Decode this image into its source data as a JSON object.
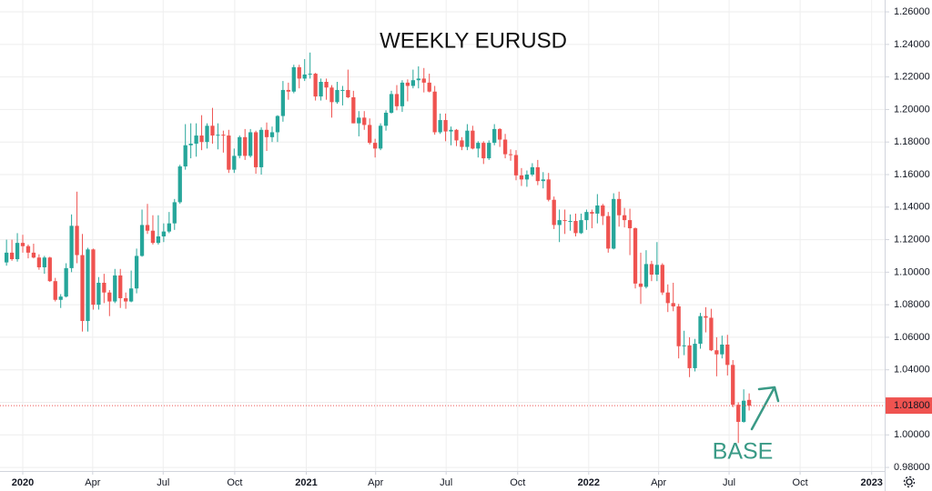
{
  "chart_data": {
    "type": "candlestick",
    "title": "WEEKLY EURUSD",
    "annotation": "BASE",
    "up_color": "#26a69a",
    "down_color": "#ef5350",
    "grid": true,
    "xlim": [
      -4.2,
      159
    ],
    "ylim": [
      0.9778,
      1.2673
    ],
    "xticks": [
      {
        "value": 0,
        "label": "2020"
      },
      {
        "value": 12.9,
        "label": "Apr"
      },
      {
        "value": 25.9,
        "label": "Jul"
      },
      {
        "value": 39.1,
        "label": "Oct"
      },
      {
        "value": 52.3,
        "label": "2021"
      },
      {
        "value": 65.1,
        "label": "Apr"
      },
      {
        "value": 78.1,
        "label": "Jul"
      },
      {
        "value": 91.3,
        "label": "Oct"
      },
      {
        "value": 104.4,
        "label": "2022"
      },
      {
        "value": 117.3,
        "label": "Apr"
      },
      {
        "value": 130.3,
        "label": "Jul"
      },
      {
        "value": 143.4,
        "label": "Oct"
      },
      {
        "value": 156.6,
        "label": "2023"
      }
    ],
    "yticks": [
      {
        "value": 0.98,
        "label": "0.98000"
      },
      {
        "value": 1.0,
        "label": "1.00000"
      },
      {
        "value": 1.02,
        "label": "1.02000"
      },
      {
        "value": 1.04,
        "label": "1.04000"
      },
      {
        "value": 1.06,
        "label": "1.06000"
      },
      {
        "value": 1.08,
        "label": "1.08000"
      },
      {
        "value": 1.1,
        "label": "1.10000"
      },
      {
        "value": 1.12,
        "label": "1.12000"
      },
      {
        "value": 1.14,
        "label": "1.14000"
      },
      {
        "value": 1.16,
        "label": "1.16000"
      },
      {
        "value": 1.18,
        "label": "1.18000"
      },
      {
        "value": 1.2,
        "label": "1.20000"
      },
      {
        "value": 1.22,
        "label": "1.22000"
      },
      {
        "value": 1.24,
        "label": "1.24000"
      },
      {
        "value": 1.26,
        "label": "1.26000"
      }
    ],
    "last_price": {
      "value": 1.018,
      "label": "1.01800"
    },
    "x": [
      -3,
      -2,
      -1,
      0,
      1,
      2,
      3,
      4,
      5,
      6,
      7,
      8,
      9,
      10,
      11,
      12,
      13,
      14,
      15,
      16,
      17,
      18,
      19,
      20,
      21,
      22,
      23,
      24,
      25,
      26,
      27,
      28,
      29,
      30,
      31,
      32,
      33,
      34,
      35,
      36,
      37,
      38,
      39,
      40,
      41,
      42,
      43,
      44,
      45,
      46,
      47,
      48,
      49,
      50,
      51,
      52,
      53,
      54,
      55,
      56,
      57,
      58,
      59,
      60,
      61,
      62,
      63,
      64,
      65,
      66,
      67,
      68,
      69,
      70,
      71,
      72,
      73,
      74,
      75,
      76,
      77,
      78,
      79,
      80,
      81,
      82,
      83,
      84,
      85,
      86,
      87,
      88,
      89,
      90,
      91,
      92,
      93,
      94,
      95,
      96,
      97,
      98,
      99,
      100,
      101,
      102,
      103,
      104,
      105,
      106,
      107,
      108,
      109,
      110,
      111,
      112,
      113,
      114,
      115,
      116,
      117,
      118,
      119,
      120,
      121,
      122,
      123,
      124,
      125,
      126,
      127,
      128,
      129,
      130,
      131,
      132,
      133,
      134
    ],
    "open": [
      1.106,
      1.112,
      1.108,
      1.118,
      1.116,
      1.112,
      1.109,
      1.103,
      1.109,
      1.0945,
      1.083,
      1.085,
      1.1025,
      1.1285,
      1.1105,
      1.07,
      1.114,
      1.08,
      1.0935,
      1.0875,
      1.082,
      1.098,
      1.084,
      1.082,
      1.09,
      1.11,
      1.129,
      1.1255,
      1.118,
      1.122,
      1.125,
      1.13,
      1.143,
      1.165,
      1.178,
      1.179,
      1.184,
      1.18,
      1.19,
      1.184,
      1.1845,
      1.184,
      1.163,
      1.1715,
      1.183,
      1.1715,
      1.186,
      1.1645,
      1.1875,
      1.183,
      1.186,
      1.196,
      1.212,
      1.211,
      1.226,
      1.219,
      1.2215,
      1.222,
      1.208,
      1.217,
      1.2135,
      1.2045,
      1.212,
      1.212,
      1.2075,
      1.1915,
      1.195,
      1.1905,
      1.1795,
      1.176,
      1.19,
      1.198,
      1.2095,
      1.202,
      1.2165,
      1.2145,
      1.218,
      1.219,
      1.2165,
      1.211,
      1.186,
      1.1935,
      1.1865,
      1.1875,
      1.181,
      1.177,
      1.187,
      1.176,
      1.1795,
      1.17,
      1.1795,
      1.188,
      1.1815,
      1.1725,
      1.172,
      1.1595,
      1.157,
      1.16,
      1.1645,
      1.156,
      1.157,
      1.1445,
      1.129,
      1.132,
      1.1315,
      1.1315,
      1.124,
      1.132,
      1.137,
      1.136,
      1.141,
      1.1345,
      1.1145,
      1.145,
      1.135,
      1.132,
      1.127,
      1.093,
      1.091,
      1.105,
      1.0985,
      1.1045,
      1.0875,
      1.081,
      1.079,
      1.0545,
      1.055,
      1.041,
      1.056,
      1.073,
      1.072,
      1.052,
      1.0495,
      1.0555,
      1.043,
      1.0185,
      1.008,
      1.0215
    ],
    "high": [
      1.12,
      1.12,
      1.124,
      1.123,
      1.117,
      1.1175,
      1.111,
      1.11,
      1.1095,
      1.0965,
      1.0865,
      1.1055,
      1.1355,
      1.1495,
      1.1235,
      1.115,
      1.1145,
      1.097,
      1.099,
      1.089,
      1.102,
      1.102,
      1.0875,
      1.101,
      1.1145,
      1.1385,
      1.142,
      1.135,
      1.135,
      1.13,
      1.137,
      1.145,
      1.166,
      1.191,
      1.1915,
      1.1915,
      1.1965,
      1.1915,
      1.201,
      1.1915,
      1.187,
      1.1875,
      1.176,
      1.184,
      1.188,
      1.188,
      1.187,
      1.189,
      1.192,
      1.1895,
      1.1965,
      1.2175,
      1.2165,
      1.2275,
      1.2275,
      1.231,
      1.235,
      1.2225,
      1.219,
      1.219,
      1.215,
      1.217,
      1.2145,
      1.2245,
      1.2115,
      1.199,
      1.199,
      1.1945,
      1.182,
      1.1915,
      1.1995,
      1.2115,
      1.215,
      1.218,
      1.2185,
      1.2245,
      1.2265,
      1.2255,
      1.222,
      1.2145,
      1.1975,
      1.1975,
      1.1895,
      1.188,
      1.183,
      1.191,
      1.19,
      1.1805,
      1.1805,
      1.181,
      1.191,
      1.1885,
      1.185,
      1.1755,
      1.175,
      1.164,
      1.1625,
      1.167,
      1.169,
      1.1615,
      1.161,
      1.1465,
      1.1385,
      1.1385,
      1.1355,
      1.136,
      1.136,
      1.1385,
      1.1385,
      1.148,
      1.142,
      1.137,
      1.1485,
      1.1495,
      1.1395,
      1.139,
      1.1275,
      1.112,
      1.1135,
      1.107,
      1.1185,
      1.1055,
      1.0925,
      1.0935,
      1.0805,
      1.064,
      1.06,
      1.059,
      1.075,
      1.0785,
      1.0775,
      1.06,
      1.061,
      1.0615,
      1.046,
      1.02,
      1.028,
      1.0255
    ],
    "low": [
      1.104,
      1.107,
      1.1065,
      1.112,
      1.1085,
      1.1085,
      1.1015,
      1.099,
      1.094,
      1.082,
      1.078,
      1.0845,
      1.1,
      1.1055,
      1.0635,
      1.0635,
      1.077,
      1.077,
      1.081,
      1.073,
      1.081,
      1.078,
      1.0775,
      1.0815,
      1.087,
      1.1095,
      1.1235,
      1.117,
      1.117,
      1.1185,
      1.124,
      1.126,
      1.142,
      1.163,
      1.17,
      1.171,
      1.175,
      1.176,
      1.179,
      1.1755,
      1.1735,
      1.161,
      1.161,
      1.17,
      1.169,
      1.1705,
      1.1605,
      1.16,
      1.1745,
      1.18,
      1.18,
      1.1925,
      1.206,
      1.21,
      1.213,
      1.2175,
      1.219,
      1.2055,
      1.2055,
      1.206,
      1.195,
      1.2035,
      1.2025,
      1.207,
      1.1915,
      1.1835,
      1.1875,
      1.1785,
      1.1705,
      1.175,
      1.187,
      1.1975,
      1.1995,
      1.1985,
      1.205,
      1.213,
      1.213,
      1.2105,
      1.2105,
      1.1845,
      1.185,
      1.1805,
      1.178,
      1.1775,
      1.175,
      1.175,
      1.1755,
      1.1705,
      1.1665,
      1.169,
      1.178,
      1.177,
      1.17,
      1.1685,
      1.1565,
      1.153,
      1.1525,
      1.159,
      1.1535,
      1.1515,
      1.1435,
      1.1265,
      1.1185,
      1.1235,
      1.1255,
      1.122,
      1.1235,
      1.126,
      1.127,
      1.13,
      1.129,
      1.112,
      1.114,
      1.128,
      1.1275,
      1.1105,
      1.09,
      1.0805,
      1.09,
      1.0945,
      1.0945,
      1.086,
      1.0755,
      1.076,
      1.047,
      1.049,
      1.0355,
      1.039,
      1.053,
      1.063,
      1.0515,
      1.036,
      1.047,
      1.0365,
      1.017,
      0.995,
      1.0075,
      1.015
    ],
    "close": [
      1.112,
      1.108,
      1.118,
      1.116,
      1.112,
      1.109,
      1.103,
      1.109,
      1.0945,
      1.083,
      1.085,
      1.1025,
      1.1285,
      1.1105,
      1.07,
      1.114,
      1.08,
      1.0935,
      1.0875,
      1.082,
      1.098,
      1.084,
      1.082,
      1.09,
      1.11,
      1.129,
      1.1255,
      1.118,
      1.122,
      1.125,
      1.13,
      1.143,
      1.165,
      1.178,
      1.179,
      1.184,
      1.18,
      1.19,
      1.184,
      1.1845,
      1.184,
      1.163,
      1.1715,
      1.183,
      1.1715,
      1.186,
      1.1645,
      1.1875,
      1.183,
      1.186,
      1.196,
      1.212,
      1.211,
      1.226,
      1.219,
      1.2215,
      1.222,
      1.208,
      1.217,
      1.2135,
      1.2045,
      1.212,
      1.212,
      1.2075,
      1.1915,
      1.195,
      1.1905,
      1.1795,
      1.176,
      1.19,
      1.198,
      1.2095,
      1.202,
      1.2165,
      1.2145,
      1.218,
      1.219,
      1.2165,
      1.211,
      1.186,
      1.1935,
      1.1865,
      1.1875,
      1.181,
      1.177,
      1.187,
      1.176,
      1.1795,
      1.17,
      1.1795,
      1.188,
      1.1815,
      1.1725,
      1.172,
      1.1595,
      1.157,
      1.16,
      1.1645,
      1.156,
      1.157,
      1.1445,
      1.129,
      1.132,
      1.1315,
      1.1315,
      1.124,
      1.132,
      1.137,
      1.136,
      1.141,
      1.1345,
      1.1145,
      1.145,
      1.135,
      1.132,
      1.127,
      1.093,
      1.091,
      1.105,
      1.0985,
      1.1045,
      1.0875,
      1.081,
      1.079,
      1.0545,
      1.055,
      1.041,
      1.056,
      1.073,
      1.072,
      1.052,
      1.0495,
      1.0555,
      1.043,
      1.0185,
      1.008,
      1.021,
      1.018
    ]
  }
}
